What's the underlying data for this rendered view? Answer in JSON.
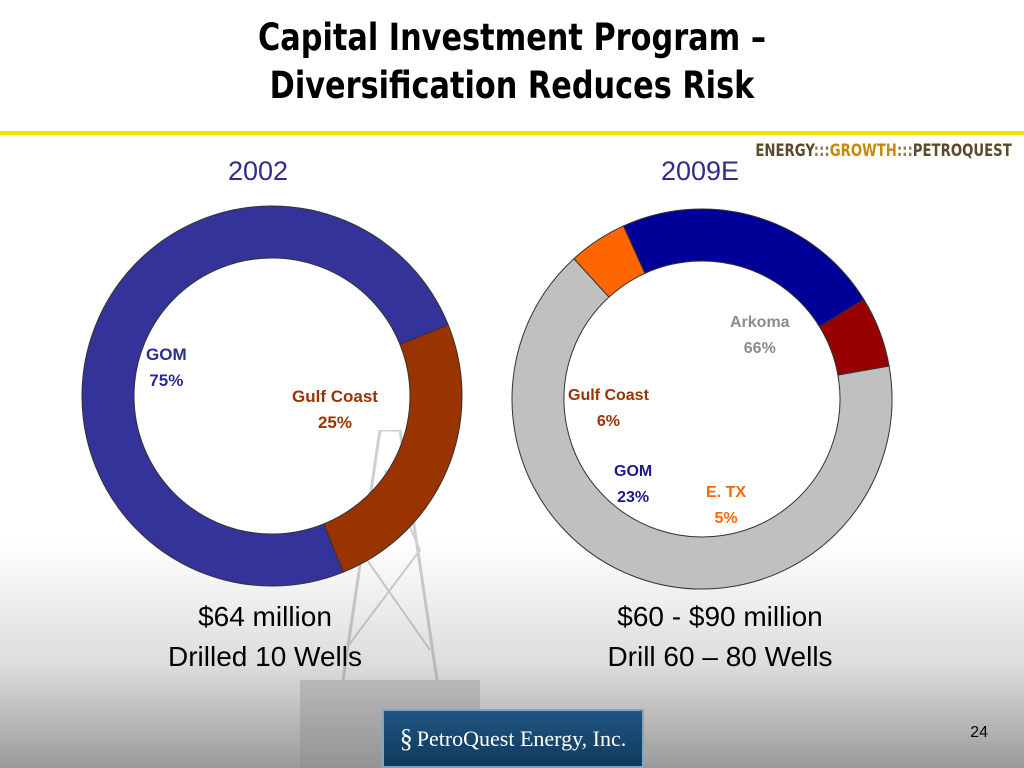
{
  "title_lines": [
    "Capital Investment Program –",
    "Diversification Reduces Risk"
  ],
  "tagline": {
    "part1": "ENERGY",
    "sep1": ":::",
    "part2": "GROWTH",
    "sep2": ":::",
    "part3": "PETROQUEST"
  },
  "chart_data": [
    {
      "type": "pie",
      "title": "2002",
      "slices": [
        {
          "label": "Gulf Coast",
          "pct_label": "25%",
          "value": 25,
          "color": "#993300",
          "text_color": "#993300"
        },
        {
          "label": "GOM",
          "pct_label": "75%",
          "value": 75,
          "color": "#333399",
          "text_color": "#2d2d8f"
        }
      ]
    },
    {
      "type": "pie",
      "title": "2009E",
      "slices": [
        {
          "label": "Arkoma",
          "pct_label": "66%",
          "value": 66,
          "color": "#c0c0c0",
          "text_color": "#8c8c8c"
        },
        {
          "label": "E. TX",
          "pct_label": "5%",
          "value": 5,
          "color": "#ff6600",
          "text_color": "#ff6600"
        },
        {
          "label": "GOM",
          "pct_label": "23%",
          "value": 23,
          "color": "#000099",
          "text_color": "#1a1a8f"
        },
        {
          "label": "Gulf Coast",
          "pct_label": "6%",
          "value": 6,
          "color": "#990000",
          "text_color": "#993300"
        }
      ]
    }
  ],
  "captions": {
    "left": [
      "$64 million",
      "Drilled 10 Wells"
    ],
    "right": [
      "$60 - $90 million",
      "Drill 60 – 80 Wells"
    ]
  },
  "logo_text": "PetroQuest Energy, Inc.",
  "page_number": "24"
}
